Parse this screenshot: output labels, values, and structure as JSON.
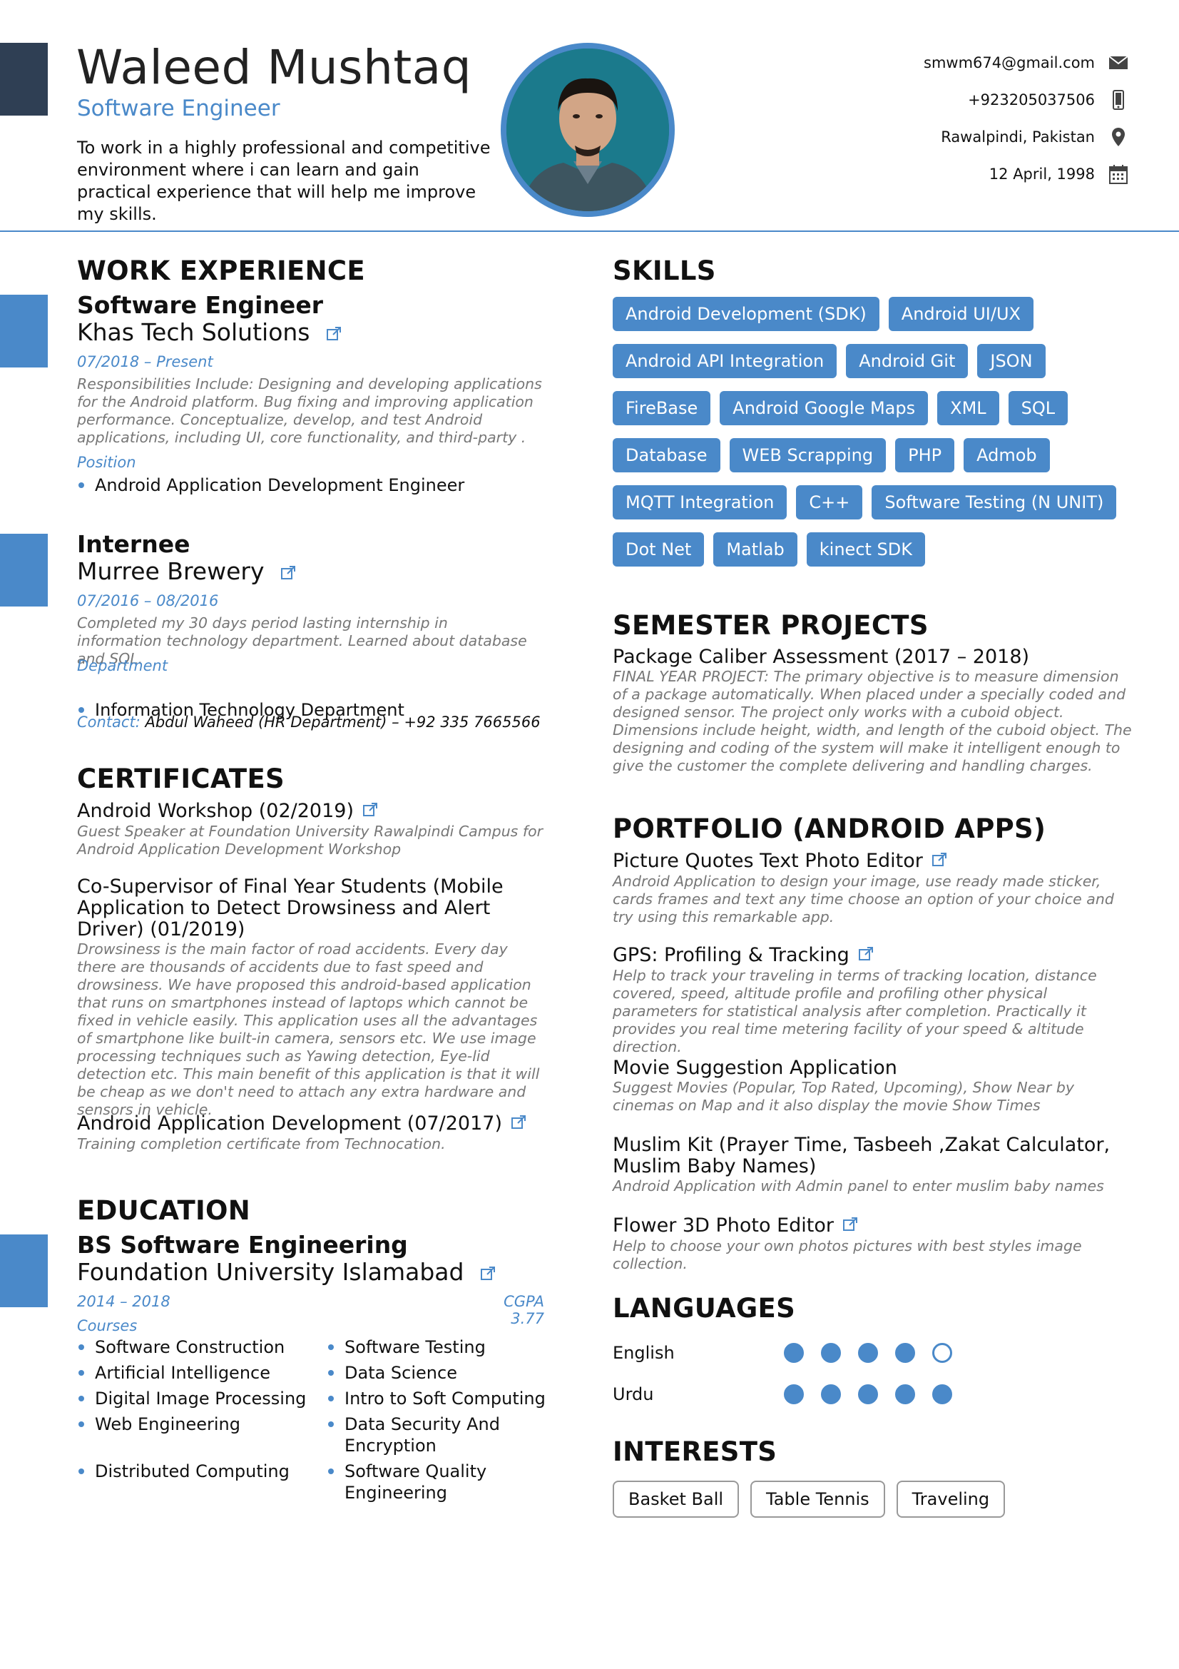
{
  "header": {
    "name": "Waleed Mushtaq",
    "role": "Software Engineer",
    "summary": "To work in a highly professional and competitive environment where i can learn and gain practical experience that will help me improve my skills.",
    "contacts": [
      {
        "text": "smwm674@gmail.com",
        "icon": "envelope-icon"
      },
      {
        "text": "+923205037506",
        "icon": "phone-icon"
      },
      {
        "text": "Rawalpindi, Pakistan",
        "icon": "location-pin-icon"
      },
      {
        "text": "12 April, 1998",
        "icon": "calendar-icon"
      }
    ]
  },
  "work": {
    "title": "WORK EXPERIENCE",
    "jobs": [
      {
        "position": "Software Engineer",
        "company": "Khas Tech Solutions",
        "dates": "07/2018 – Present",
        "description": "Responsibilities Include: Designing and developing applications for the Android platform. Bug fixing and improving application performance. Conceptualize, develop, and test Android applications, including UI, core functionality, and third-party .",
        "label": "Position",
        "bullet": "Android Application Development Engineer"
      },
      {
        "position": "Internee",
        "company": "Murree Brewery",
        "dates": "07/2016 – 08/2016",
        "description": "Completed my 30 days period lasting internship in information technology department. Learned about database and SQL.",
        "label": "Department",
        "bullet": "Information Technology Department",
        "contact_label": "Contact:",
        "contact_value": "Abdul Waheed (HR Department) – +92 335 7665566"
      }
    ]
  },
  "certificates": {
    "title": "CERTIFICATES",
    "items": [
      {
        "title": "Android Workshop (02/2019)",
        "desc": "Guest Speaker at Foundation University Rawalpindi Campus for Android Application Development Workshop"
      },
      {
        "title": "Co-Supervisor of Final Year Students (Mobile Application to Detect Drowsiness and Alert Driver) (01/2019)",
        "desc": "Drowsiness is the main factor of road accidents. Every day there are thousands of accidents due to fast speed and drowsiness. We have proposed this android-based application that runs on smartphones instead of laptops which cannot be fixed in vehicle easily. This application uses all the advantages of smartphone like built-in camera, sensors etc. We use image processing techniques such as Yawing detection, Eye-lid detection etc. This main benefit of this application is that it will be cheap as we don't need to attach any extra hardware and sensors in vehicle."
      },
      {
        "title": "Android Application Development (07/2017)",
        "desc": "Training completion certificate from Technocation."
      }
    ]
  },
  "education": {
    "title": "EDUCATION",
    "degree": "BS Software Engineering",
    "school": "Foundation University Islamabad",
    "dates": "2014 – 2018",
    "cgpa": "CGPA 3.77",
    "courses_label": "Courses",
    "courses_left": [
      "Software Construction",
      "Artificial Intelligence",
      "Digital Image Processing",
      "Web Engineering",
      "Distributed Computing"
    ],
    "courses_right": [
      "Software Testing",
      "Data Science",
      "Intro to Soft Computing",
      "Data Security And Encryption",
      "Software Quality Engineering"
    ]
  },
  "skills": {
    "title": "SKILLS",
    "rows": [
      [
        "Android Development (SDK)",
        "Android UI/UX"
      ],
      [
        "Android API Integration",
        "Android Git",
        "JSON"
      ],
      [
        "FireBase",
        "Android Google Maps",
        "XML",
        "SQL"
      ],
      [
        "Database",
        "WEB Scrapping",
        "PHP",
        "Admob"
      ],
      [
        "MQTT Integration",
        "C++",
        "Software Testing (N UNIT)"
      ],
      [
        "Dot Net",
        "Matlab",
        "kinect SDK"
      ]
    ]
  },
  "projects": {
    "title": "SEMESTER PROJECTS",
    "items": [
      {
        "title": "Package Caliber Assessment (2017 – 2018)",
        "desc": "FINAL YEAR PROJECT: The primary objective is to measure dimension of a package automatically. When placed under a specially coded and designed sensor. The project only works with a cuboid object. Dimensions include height, width, and length of the cuboid object. The designing and coding of the system will make it intelligent enough to give the customer the complete delivering and handling charges."
      }
    ]
  },
  "portfolio": {
    "title": "PORTFOLIO (ANDROID APPS)",
    "items": [
      {
        "title": "Picture Quotes Text Photo Editor",
        "desc": "Android Application to design your image, use ready made sticker, cards frames and text any time choose an option of your choice and try using this remarkable app."
      },
      {
        "title": "GPS: Profiling & Tracking",
        "desc": "Help to track your traveling in terms of tracking location, distance covered, speed, altitude profile and profiling other physical parameters for statistical analysis after completion. Practically it provides you real time metering facility of your speed & altitude direction."
      },
      {
        "title": "Movie Suggestion Application",
        "desc": "Suggest Movies (Popular, Top Rated, Upcoming), Show Near by cinemas on Map and it also display the movie Show Times"
      },
      {
        "title": "Muslim Kit (Prayer Time, Tasbeeh ,Zakat Calculator, Muslim Baby Names)",
        "desc": "Android Application with Admin panel to enter muslim baby names"
      },
      {
        "title": "Flower 3D Photo Editor",
        "desc": "Help to choose your own photos pictures with best styles image collection."
      }
    ]
  },
  "languages": {
    "title": "LANGUAGES",
    "items": [
      {
        "name": "English",
        "level": 4,
        "max": 5
      },
      {
        "name": "Urdu",
        "level": 5,
        "max": 5
      }
    ]
  },
  "interests": {
    "title": "INTERESTS",
    "items": [
      "Basket Ball",
      "Table Tennis",
      "Traveling"
    ]
  },
  "colors": {
    "accent": "#4a89c9",
    "header_bar": "#2f3f54"
  }
}
